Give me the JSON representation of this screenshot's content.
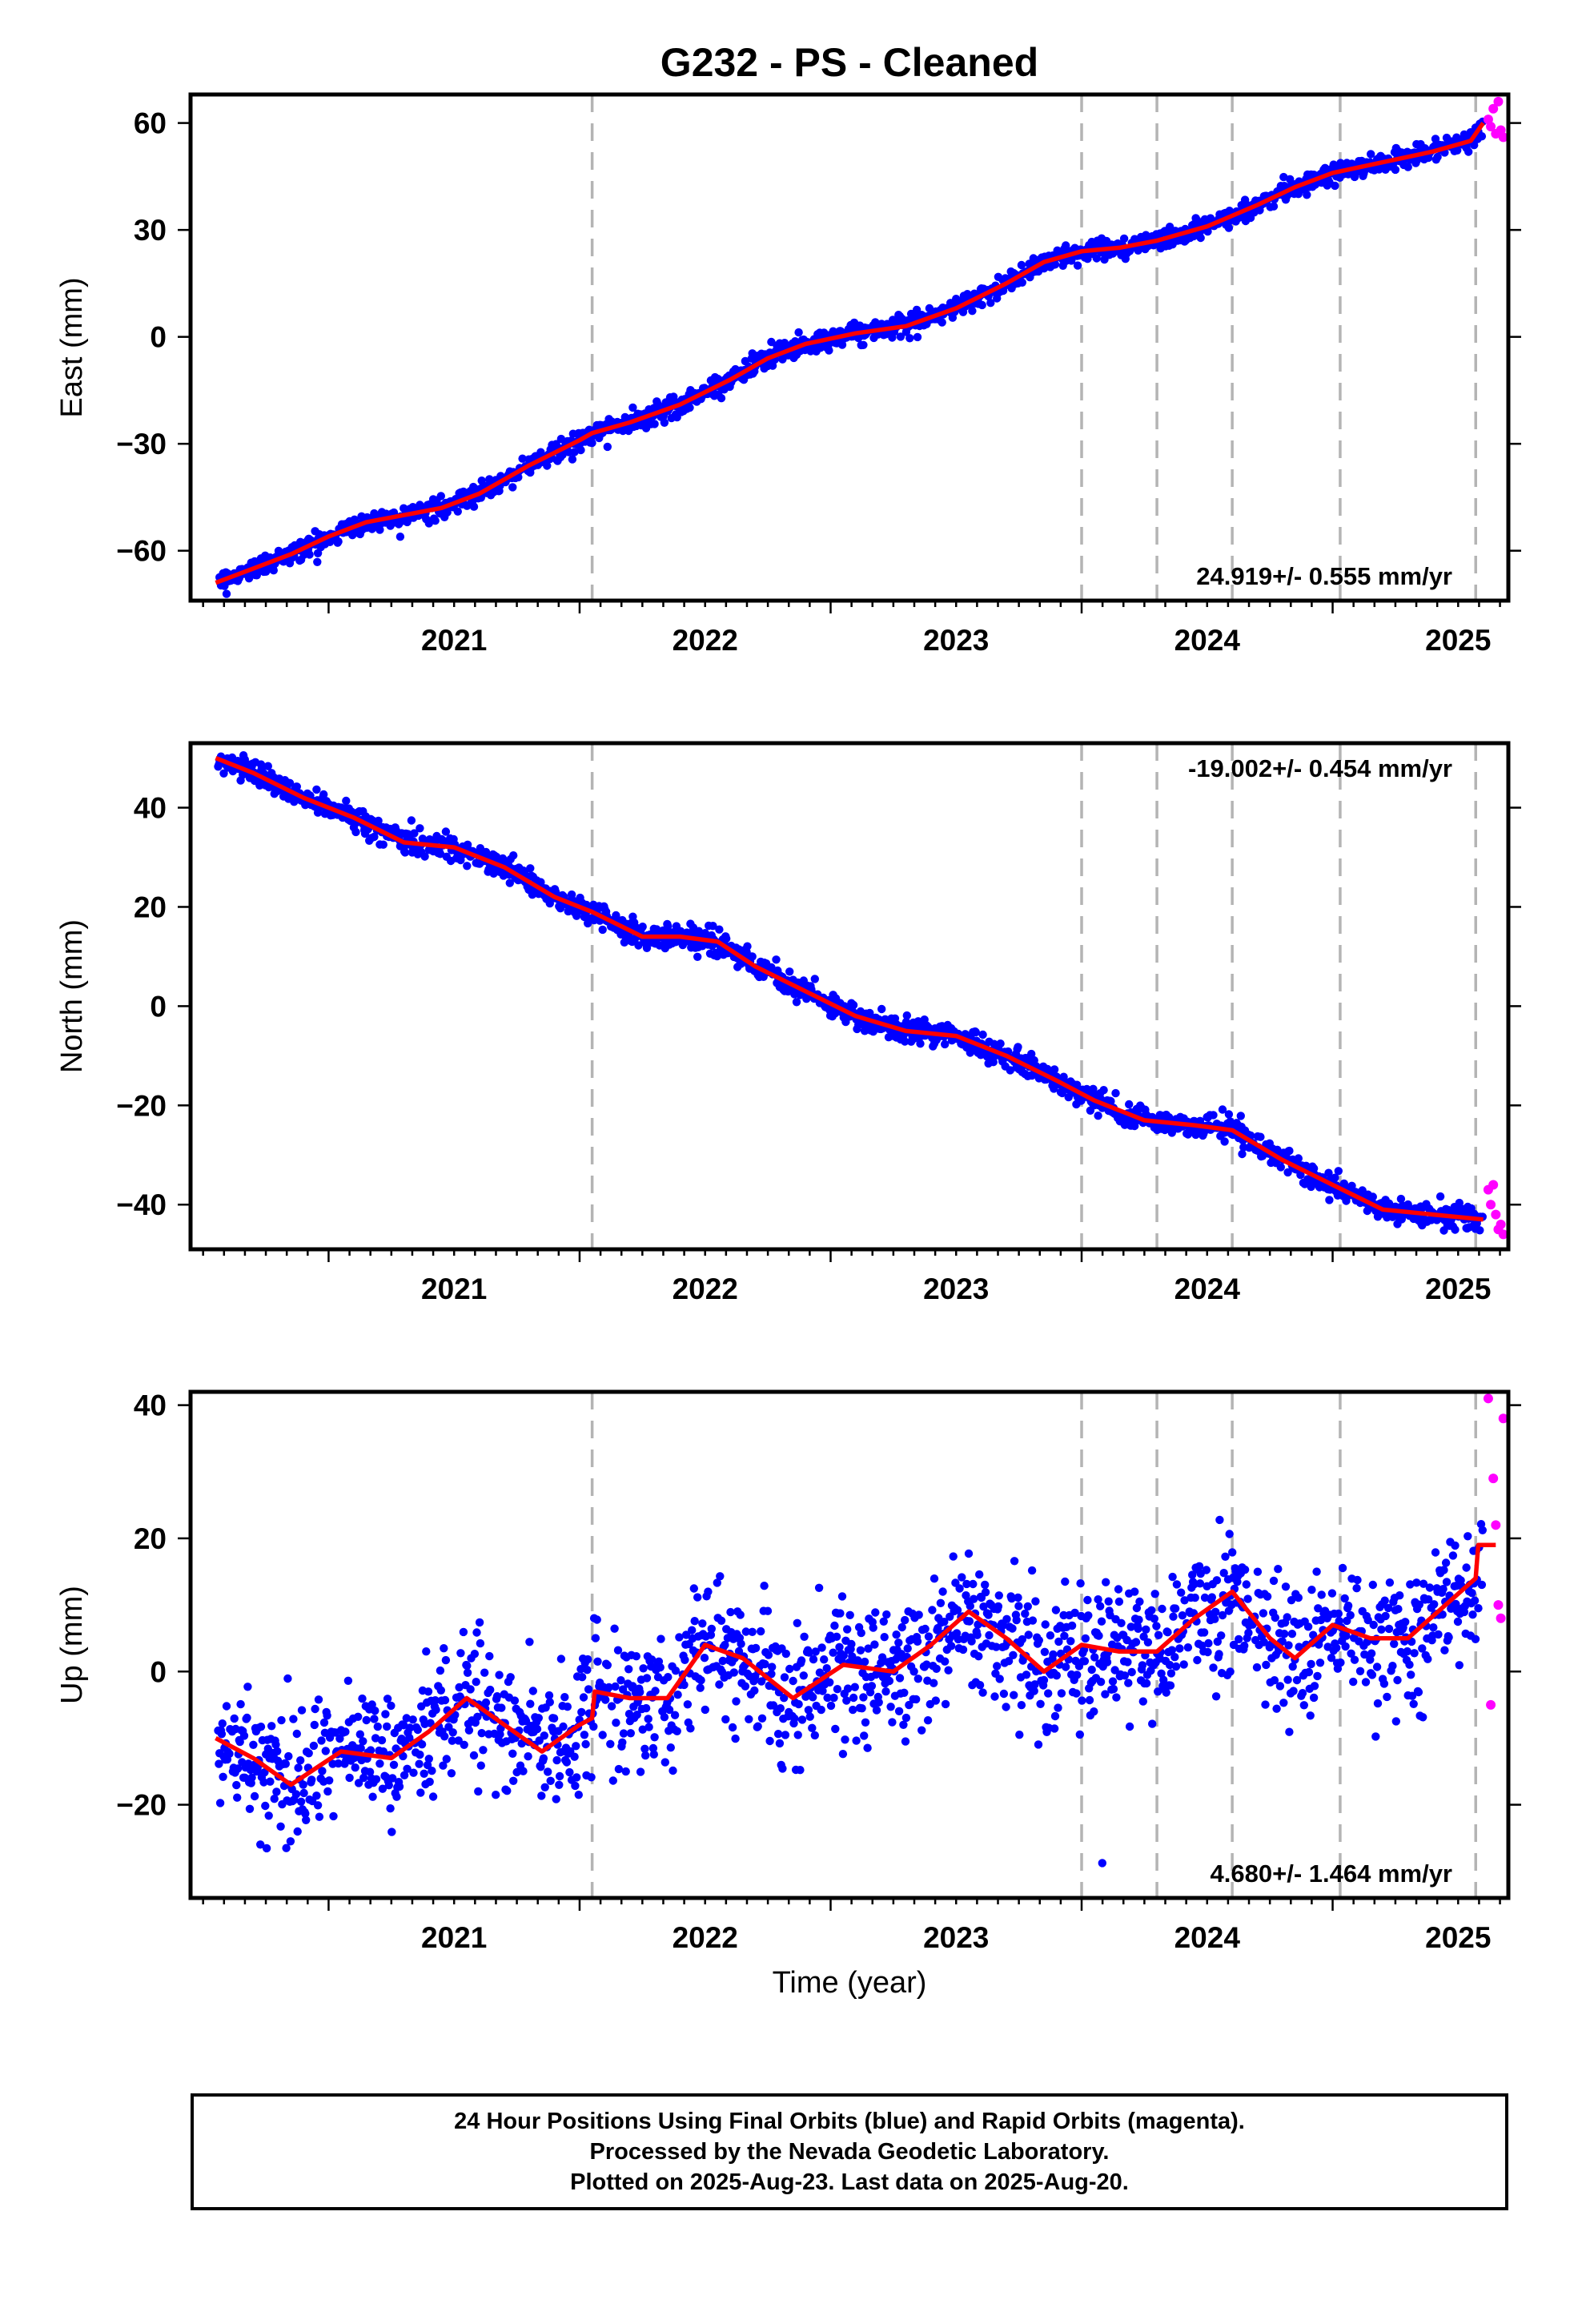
{
  "title": "G232  - PS - Cleaned",
  "xlabel": "Time (year)",
  "colors": {
    "final": "#0000ff",
    "rapid": "#ff00ff",
    "model": "#ff0000",
    "steps": "#b4b4b4"
  },
  "chart_data": [
    {
      "type": "scatter",
      "ylabel": "East (mm)",
      "xlim": [
        2020.45,
        2025.7
      ],
      "ylim": [
        -74,
        68
      ],
      "xticks": [
        "2021",
        "2022",
        "2023",
        "2024",
        "2025"
      ],
      "yticks": [
        60,
        30,
        0,
        -30,
        -60
      ],
      "rate": "24.919+/- 0.555 mm/yr",
      "rate_position": "bottom-right",
      "step_dates": [
        2022.05,
        2024.0,
        2024.3,
        2024.6,
        2025.03,
        2025.57
      ],
      "model": {
        "x": [
          2020.55,
          2020.7,
          2020.85,
          2021.0,
          2021.15,
          2021.3,
          2021.45,
          2021.6,
          2021.8,
          2022.0,
          2022.05,
          2022.2,
          2022.4,
          2022.6,
          2022.75,
          2022.9,
          2023.1,
          2023.3,
          2023.5,
          2023.7,
          2023.85,
          2024.0,
          2024.15,
          2024.3,
          2024.5,
          2024.7,
          2024.85,
          2025.0,
          2025.2,
          2025.4,
          2025.55,
          2025.6
        ],
        "y": [
          -69,
          -65,
          -61,
          -56,
          -52,
          -50,
          -48,
          -44,
          -36,
          -29,
          -27,
          -24,
          -19,
          -12,
          -6,
          -2,
          1,
          3,
          8,
          15,
          21,
          24,
          25,
          27,
          31,
          37,
          42,
          46,
          49,
          52,
          55,
          60
        ]
      },
      "rapid": {
        "x": [
          2025.62,
          2025.63,
          2025.64,
          2025.65,
          2025.66,
          2025.67,
          2025.68
        ],
        "y": [
          61,
          59,
          64,
          57,
          66,
          58,
          56
        ]
      }
    },
    {
      "type": "scatter",
      "ylabel": "North (mm)",
      "xlim": [
        2020.45,
        2025.7
      ],
      "ylim": [
        -49,
        53
      ],
      "xticks": [
        "2021",
        "2022",
        "2023",
        "2024",
        "2025"
      ],
      "yticks": [
        40,
        20,
        0,
        -20,
        -40
      ],
      "rate": "-19.002+/- 0.454 mm/yr",
      "rate_position": "top-right",
      "step_dates": [
        2022.05,
        2024.0,
        2024.3,
        2024.6,
        2025.03,
        2025.57
      ],
      "model": {
        "x": [
          2020.55,
          2020.7,
          2020.9,
          2021.1,
          2021.3,
          2021.5,
          2021.7,
          2021.9,
          2022.05,
          2022.25,
          2022.4,
          2022.55,
          2022.7,
          2022.9,
          2023.1,
          2023.3,
          2023.5,
          2023.7,
          2023.9,
          2024.05,
          2024.25,
          2024.45,
          2024.6,
          2024.8,
          2025.0,
          2025.2,
          2025.4,
          2025.6
        ],
        "y": [
          50,
          47,
          42,
          38,
          33,
          32,
          28,
          22,
          19,
          14,
          14,
          13,
          8,
          3,
          -2,
          -5,
          -6,
          -10,
          -15,
          -19,
          -23,
          -24,
          -25,
          -31,
          -36,
          -41,
          -42,
          -43
        ]
      },
      "rapid": {
        "x": [
          2025.62,
          2025.63,
          2025.64,
          2025.65,
          2025.66,
          2025.67,
          2025.68
        ],
        "y": [
          -37,
          -40,
          -36,
          -42,
          -45,
          -44,
          -46
        ]
      }
    },
    {
      "type": "scatter",
      "ylabel": "Up (mm)",
      "xlim": [
        2020.45,
        2025.7
      ],
      "ylim": [
        -34,
        42
      ],
      "xticks": [
        "2021",
        "2022",
        "2023",
        "2024",
        "2025"
      ],
      "yticks": [
        40,
        20,
        0,
        -20
      ],
      "rate": "4.680+/- 1.464 mm/yr",
      "rate_position": "bottom-right",
      "step_dates": [
        2022.05,
        2024.0,
        2024.3,
        2024.6,
        2025.03,
        2025.57
      ],
      "model": {
        "x": [
          2020.55,
          2020.7,
          2020.85,
          2021.05,
          2021.25,
          2021.4,
          2021.55,
          2021.7,
          2021.85,
          2022.0,
          2022.05,
          2022.06,
          2022.2,
          2022.35,
          2022.5,
          2022.65,
          2022.85,
          2023.05,
          2023.25,
          2023.4,
          2023.55,
          2023.7,
          2023.85,
          2024.0,
          2024.15,
          2024.3,
          2024.45,
          2024.6,
          2024.75,
          2024.85,
          2025.0,
          2025.15,
          2025.3,
          2025.45,
          2025.57,
          2025.58,
          2025.65
        ],
        "y": [
          -10,
          -13,
          -17,
          -12,
          -13,
          -9,
          -4,
          -8,
          -12,
          -8,
          -7,
          -3,
          -4,
          -4,
          4,
          2,
          -4,
          1,
          0,
          4,
          9,
          5,
          0,
          4,
          3,
          3,
          8,
          12,
          5,
          2,
          7,
          5,
          5,
          10,
          14,
          19,
          19
        ]
      },
      "rapid": {
        "x": [
          2025.62,
          2025.63,
          2025.64,
          2025.65,
          2025.66,
          2025.67,
          2025.68
        ],
        "y": [
          41,
          -5,
          29,
          22,
          10,
          8,
          38
        ]
      }
    }
  ],
  "footer": {
    "line1": "24 Hour Positions Using Final Orbits (blue) and Rapid Orbits (magenta).",
    "line2": "Processed by the Nevada Geodetic Laboratory.",
    "line3": "Plotted on 2025-Aug-23. Last data on 2025-Aug-20."
  }
}
